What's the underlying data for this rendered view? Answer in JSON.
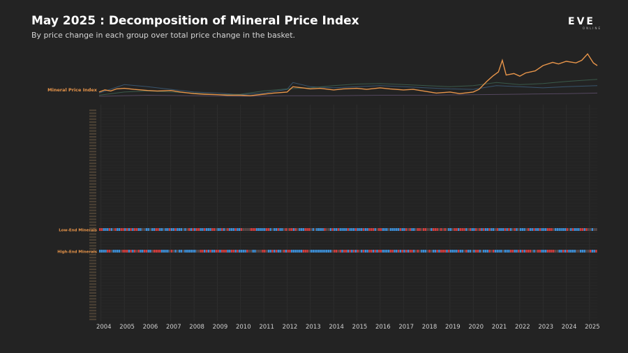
{
  "title": "May 2025 : Decomposition of Mineral Price Index",
  "subtitle": "By price change in each group over total price change in the basket.",
  "logo": {
    "main": "EVE",
    "sub": "ONLINE"
  },
  "colors": {
    "background": "#232323",
    "index_line": "#e8954a",
    "index_label": "#e8954a",
    "positive": "#3d8fd6",
    "negative": "#d23d3d",
    "group_label": "#e8954a",
    "row_label": "#6b5a44",
    "grid": "#343434"
  },
  "chart_data": {
    "type": "line+heatmap",
    "x_years": [
      "2004",
      "2005",
      "2006",
      "2007",
      "2008",
      "2009",
      "2010",
      "2011",
      "2012",
      "2013",
      "2014",
      "2015",
      "2016",
      "2017",
      "2018",
      "2019",
      "2020",
      "2021",
      "2022",
      "2023",
      "2024",
      "2025"
    ],
    "xlim": [
      "2003-12",
      "2025-05"
    ],
    "index_series": {
      "name": "Mineral Price Index",
      "points": [
        [
          "2003-12",
          0.8
        ],
        [
          "2004-03",
          0.84
        ],
        [
          "2004-06",
          0.82
        ],
        [
          "2004-09",
          0.86
        ],
        [
          "2005-01",
          0.87
        ],
        [
          "2005-06",
          0.85
        ],
        [
          "2006-01",
          0.83
        ],
        [
          "2006-06",
          0.82
        ],
        [
          "2007-01",
          0.83
        ],
        [
          "2007-06",
          0.8
        ],
        [
          "2008-01",
          0.77
        ],
        [
          "2008-06",
          0.76
        ],
        [
          "2009-01",
          0.75
        ],
        [
          "2009-06",
          0.74
        ],
        [
          "2010-01",
          0.74
        ],
        [
          "2010-06",
          0.73
        ],
        [
          "2011-01",
          0.76
        ],
        [
          "2011-06",
          0.78
        ],
        [
          "2012-01",
          0.8
        ],
        [
          "2012-04",
          0.9
        ],
        [
          "2012-09",
          0.88
        ],
        [
          "2013-01",
          0.86
        ],
        [
          "2013-06",
          0.87
        ],
        [
          "2014-01",
          0.84
        ],
        [
          "2014-06",
          0.86
        ],
        [
          "2015-01",
          0.87
        ],
        [
          "2015-06",
          0.85
        ],
        [
          "2016-01",
          0.88
        ],
        [
          "2016-06",
          0.86
        ],
        [
          "2017-01",
          0.84
        ],
        [
          "2017-06",
          0.85
        ],
        [
          "2018-01",
          0.81
        ],
        [
          "2018-06",
          0.78
        ],
        [
          "2019-01",
          0.8
        ],
        [
          "2019-06",
          0.77
        ],
        [
          "2020-01",
          0.8
        ],
        [
          "2020-04",
          0.85
        ],
        [
          "2020-08",
          1.0
        ],
        [
          "2020-11",
          1.1
        ],
        [
          "2021-02",
          1.18
        ],
        [
          "2021-04",
          1.4
        ],
        [
          "2021-06",
          1.12
        ],
        [
          "2021-10",
          1.15
        ],
        [
          "2022-01",
          1.1
        ],
        [
          "2022-04",
          1.16
        ],
        [
          "2022-09",
          1.2
        ],
        [
          "2023-01",
          1.3
        ],
        [
          "2023-06",
          1.36
        ],
        [
          "2023-09",
          1.33
        ],
        [
          "2024-01",
          1.38
        ],
        [
          "2024-06",
          1.35
        ],
        [
          "2024-09",
          1.4
        ],
        [
          "2024-12",
          1.52
        ],
        [
          "2025-03",
          1.35
        ],
        [
          "2025-05",
          1.3
        ]
      ]
    },
    "context_series": [
      {
        "points": [
          [
            "2003-12",
            0.78
          ],
          [
            "2005-01",
            0.94
          ],
          [
            "2006-01",
            0.9
          ],
          [
            "2007-01",
            0.85
          ],
          [
            "2008-01",
            0.8
          ],
          [
            "2009-01",
            0.78
          ],
          [
            "2010-01",
            0.75
          ],
          [
            "2011-01",
            0.78
          ],
          [
            "2012-01",
            0.85
          ],
          [
            "2012-04",
            0.98
          ],
          [
            "2013-01",
            0.9
          ],
          [
            "2014-01",
            0.88
          ],
          [
            "2015-01",
            0.9
          ],
          [
            "2016-01",
            0.92
          ],
          [
            "2017-01",
            0.9
          ],
          [
            "2018-01",
            0.88
          ],
          [
            "2019-01",
            0.86
          ],
          [
            "2020-01",
            0.85
          ],
          [
            "2021-01",
            0.92
          ],
          [
            "2022-01",
            0.9
          ],
          [
            "2023-01",
            0.88
          ],
          [
            "2024-01",
            0.9
          ],
          [
            "2025-05",
            0.92
          ]
        ]
      },
      {
        "points": [
          [
            "2003-12",
            0.74
          ],
          [
            "2005-01",
            0.8
          ],
          [
            "2006-01",
            0.82
          ],
          [
            "2007-01",
            0.8
          ],
          [
            "2008-01",
            0.78
          ],
          [
            "2009-01",
            0.75
          ],
          [
            "2010-01",
            0.76
          ],
          [
            "2011-01",
            0.82
          ],
          [
            "2012-01",
            0.86
          ],
          [
            "2013-01",
            0.88
          ],
          [
            "2014-01",
            0.92
          ],
          [
            "2015-01",
            0.95
          ],
          [
            "2016-01",
            0.96
          ],
          [
            "2017-01",
            0.94
          ],
          [
            "2018-01",
            0.92
          ],
          [
            "2019-01",
            0.9
          ],
          [
            "2020-01",
            0.92
          ],
          [
            "2021-01",
            0.98
          ],
          [
            "2022-01",
            0.94
          ],
          [
            "2023-01",
            0.96
          ],
          [
            "2024-01",
            1.0
          ],
          [
            "2025-05",
            1.04
          ]
        ]
      },
      {
        "points": [
          [
            "2003-12",
            0.72
          ],
          [
            "2006-01",
            0.74
          ],
          [
            "2008-01",
            0.73
          ],
          [
            "2010-01",
            0.72
          ],
          [
            "2012-01",
            0.73
          ],
          [
            "2014-01",
            0.73
          ],
          [
            "2016-01",
            0.74
          ],
          [
            "2018-01",
            0.74
          ],
          [
            "2020-01",
            0.75
          ],
          [
            "2022-01",
            0.76
          ],
          [
            "2024-01",
            0.77
          ],
          [
            "2025-05",
            0.78
          ]
        ]
      }
    ],
    "groups": [
      {
        "label": "Low-End Minerals"
      },
      {
        "label": "High-End Minerals"
      }
    ]
  }
}
